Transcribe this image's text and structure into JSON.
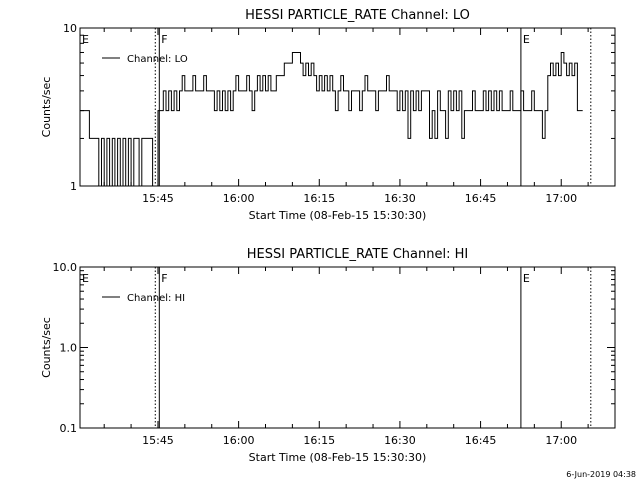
{
  "footer": {
    "timestamp": "6-Jun-2019 04:38"
  },
  "chart_data": [
    {
      "type": "line",
      "title": "HESSI PARTICLE_RATE Channel: LO",
      "xlabel": "Start Time (08-Feb-15 15:30:30)",
      "ylabel": "Counts/sec",
      "y_scale": "log",
      "ylim": [
        1,
        10
      ],
      "y_ticks": [
        {
          "value": 1,
          "label": "1"
        },
        {
          "value": 10,
          "label": "10"
        }
      ],
      "xlim": [
        "15:30:30",
        "17:10:00"
      ],
      "x_ticks": [
        "15:45",
        "16:00",
        "16:15",
        "16:30",
        "16:45",
        "17:00"
      ],
      "legend": {
        "position": "top-left",
        "entries": [
          "Channel: LO"
        ]
      },
      "markers": [
        {
          "time": "15:30:30",
          "label": "E",
          "style": "solid"
        },
        {
          "time": "15:44:30",
          "label": "",
          "style": "dotted"
        },
        {
          "time": "15:45:15",
          "label": "F",
          "style": "solid"
        },
        {
          "time": "16:52:30",
          "label": "E",
          "style": "solid"
        },
        {
          "time": "17:05:30",
          "label": "",
          "style": "dotted"
        }
      ],
      "series": [
        {
          "name": "Channel: LO",
          "points": [
            [
              "15:30:30",
              3
            ],
            [
              "15:32:00",
              3
            ],
            [
              "15:32:15",
              2
            ],
            [
              "15:33:30",
              2
            ],
            [
              "15:34:00",
              1
            ],
            [
              "15:34:30",
              2
            ],
            [
              "15:35:00",
              1
            ],
            [
              "15:35:30",
              2
            ],
            [
              "15:36:00",
              1
            ],
            [
              "15:36:30",
              2
            ],
            [
              "15:37:00",
              1
            ],
            [
              "15:37:30",
              2
            ],
            [
              "15:38:00",
              1
            ],
            [
              "15:38:30",
              2
            ],
            [
              "15:39:00",
              1
            ],
            [
              "15:39:30",
              2
            ],
            [
              "15:40:00",
              1
            ],
            [
              "15:40:30",
              2
            ],
            [
              "15:41:00",
              2
            ],
            [
              "15:41:30",
              1
            ],
            [
              "15:42:00",
              2
            ],
            [
              "15:43:30",
              2
            ],
            [
              "15:44:00",
              1
            ],
            [
              "15:44:30",
              1
            ],
            [
              "15:45:00",
              3
            ],
            [
              "15:45:30",
              3
            ],
            [
              "15:46:00",
              4
            ],
            [
              "15:46:30",
              3
            ],
            [
              "15:47:00",
              4
            ],
            [
              "15:47:30",
              3
            ],
            [
              "15:48:00",
              4
            ],
            [
              "15:48:30",
              3
            ],
            [
              "15:49:00",
              4
            ],
            [
              "15:49:30",
              5
            ],
            [
              "15:50:00",
              4
            ],
            [
              "15:51:00",
              4
            ],
            [
              "15:51:30",
              5
            ],
            [
              "15:52:00",
              4
            ],
            [
              "15:53:00",
              4
            ],
            [
              "15:53:30",
              5
            ],
            [
              "15:54:00",
              4
            ],
            [
              "15:55:00",
              4
            ],
            [
              "15:55:30",
              3
            ],
            [
              "15:56:00",
              4
            ],
            [
              "15:56:30",
              3
            ],
            [
              "15:57:00",
              4
            ],
            [
              "15:57:30",
              3
            ],
            [
              "15:58:00",
              4
            ],
            [
              "15:58:30",
              3
            ],
            [
              "15:59:00",
              4
            ],
            [
              "15:59:30",
              5
            ],
            [
              "16:00:00",
              4
            ],
            [
              "16:01:00",
              4
            ],
            [
              "16:01:30",
              5
            ],
            [
              "16:02:00",
              4
            ],
            [
              "16:02:30",
              3
            ],
            [
              "16:03:00",
              4
            ],
            [
              "16:03:30",
              5
            ],
            [
              "16:04:00",
              4
            ],
            [
              "16:04:30",
              5
            ],
            [
              "16:05:00",
              4
            ],
            [
              "16:05:30",
              5
            ],
            [
              "16:06:00",
              4
            ],
            [
              "16:07:00",
              5
            ],
            [
              "16:08:00",
              5
            ],
            [
              "16:08:30",
              6
            ],
            [
              "16:09:30",
              6
            ],
            [
              "16:10:00",
              7
            ],
            [
              "16:11:00",
              7
            ],
            [
              "16:11:30",
              6
            ],
            [
              "16:12:00",
              5
            ],
            [
              "16:12:30",
              6
            ],
            [
              "16:13:00",
              5
            ],
            [
              "16:13:30",
              6
            ],
            [
              "16:14:00",
              5
            ],
            [
              "16:14:30",
              4
            ],
            [
              "16:15:00",
              5
            ],
            [
              "16:15:30",
              4
            ],
            [
              "16:16:00",
              5
            ],
            [
              "16:16:30",
              4
            ],
            [
              "16:17:00",
              5
            ],
            [
              "16:17:30",
              4
            ],
            [
              "16:18:00",
              3
            ],
            [
              "16:18:30",
              4
            ],
            [
              "16:19:00",
              5
            ],
            [
              "16:19:30",
              4
            ],
            [
              "16:20:00",
              4
            ],
            [
              "16:20:30",
              3
            ],
            [
              "16:21:00",
              4
            ],
            [
              "16:22:00",
              4
            ],
            [
              "16:22:30",
              3
            ],
            [
              "16:23:00",
              4
            ],
            [
              "16:23:30",
              5
            ],
            [
              "16:24:00",
              4
            ],
            [
              "16:25:00",
              4
            ],
            [
              "16:25:30",
              3
            ],
            [
              "16:26:00",
              4
            ],
            [
              "16:27:00",
              4
            ],
            [
              "16:27:30",
              5
            ],
            [
              "16:28:00",
              4
            ],
            [
              "16:29:00",
              4
            ],
            [
              "16:29:30",
              3
            ],
            [
              "16:30:00",
              4
            ],
            [
              "16:30:30",
              3
            ],
            [
              "16:31:00",
              4
            ],
            [
              "16:31:30",
              2
            ],
            [
              "16:32:00",
              4
            ],
            [
              "16:32:30",
              3
            ],
            [
              "16:33:00",
              4
            ],
            [
              "16:33:30",
              3
            ],
            [
              "16:34:00",
              4
            ],
            [
              "16:35:00",
              4
            ],
            [
              "16:35:30",
              2
            ],
            [
              "16:36:00",
              3
            ],
            [
              "16:36:30",
              2
            ],
            [
              "16:37:00",
              4
            ],
            [
              "16:37:30",
              3
            ],
            [
              "16:38:00",
              3
            ],
            [
              "16:38:30",
              2
            ],
            [
              "16:39:00",
              4
            ],
            [
              "16:39:30",
              3
            ],
            [
              "16:40:00",
              4
            ],
            [
              "16:40:30",
              3
            ],
            [
              "16:41:00",
              4
            ],
            [
              "16:41:30",
              2
            ],
            [
              "16:42:00",
              3
            ],
            [
              "16:43:00",
              3
            ],
            [
              "16:43:30",
              4
            ],
            [
              "16:44:00",
              3
            ],
            [
              "16:45:00",
              3
            ],
            [
              "16:45:30",
              4
            ],
            [
              "16:46:00",
              3
            ],
            [
              "16:46:30",
              4
            ],
            [
              "16:47:00",
              3
            ],
            [
              "16:47:30",
              4
            ],
            [
              "16:48:00",
              3
            ],
            [
              "16:48:30",
              4
            ],
            [
              "16:49:00",
              3
            ],
            [
              "16:50:00",
              3
            ],
            [
              "16:50:30",
              4
            ],
            [
              "16:51:00",
              3
            ],
            [
              "16:52:00",
              3
            ],
            [
              "16:52:30",
              4
            ],
            [
              "16:53:00",
              3
            ],
            [
              "16:54:00",
              3
            ],
            [
              "16:54:30",
              4
            ],
            [
              "16:55:00",
              3
            ],
            [
              "16:56:00",
              3
            ],
            [
              "16:56:30",
              2
            ],
            [
              "16:57:00",
              3
            ],
            [
              "16:57:30",
              5
            ],
            [
              "16:58:00",
              6
            ],
            [
              "16:58:30",
              5
            ],
            [
              "16:59:00",
              6
            ],
            [
              "16:59:30",
              5
            ],
            [
              "17:00:00",
              7
            ],
            [
              "17:00:30",
              6
            ],
            [
              "17:01:00",
              5
            ],
            [
              "17:01:30",
              6
            ],
            [
              "17:02:00",
              5
            ],
            [
              "17:02:30",
              6
            ],
            [
              "17:03:00",
              3
            ],
            [
              "17:04:00",
              3
            ]
          ]
        }
      ]
    },
    {
      "type": "line",
      "title": "HESSI PARTICLE_RATE Channel: HI",
      "xlabel": "Start Time (08-Feb-15 15:30:30)",
      "ylabel": "Counts/sec",
      "y_scale": "log",
      "ylim": [
        0.1,
        10
      ],
      "y_ticks": [
        {
          "value": 0.1,
          "label": "0.1"
        },
        {
          "value": 1,
          "label": "1.0"
        },
        {
          "value": 10,
          "label": "10.0"
        }
      ],
      "xlim": [
        "15:30:30",
        "17:10:00"
      ],
      "x_ticks": [
        "15:45",
        "16:00",
        "16:15",
        "16:30",
        "16:45",
        "17:00"
      ],
      "legend": {
        "position": "top-left",
        "entries": [
          "Channel: HI"
        ]
      },
      "markers": [
        {
          "time": "15:30:30",
          "label": "E",
          "style": "solid"
        },
        {
          "time": "15:44:30",
          "label": "",
          "style": "dotted"
        },
        {
          "time": "15:45:15",
          "label": "F",
          "style": "solid"
        },
        {
          "time": "16:52:30",
          "label": "E",
          "style": "solid"
        },
        {
          "time": "17:05:30",
          "label": "",
          "style": "dotted"
        }
      ],
      "series": [
        {
          "name": "Channel: HI",
          "points": []
        }
      ]
    }
  ]
}
